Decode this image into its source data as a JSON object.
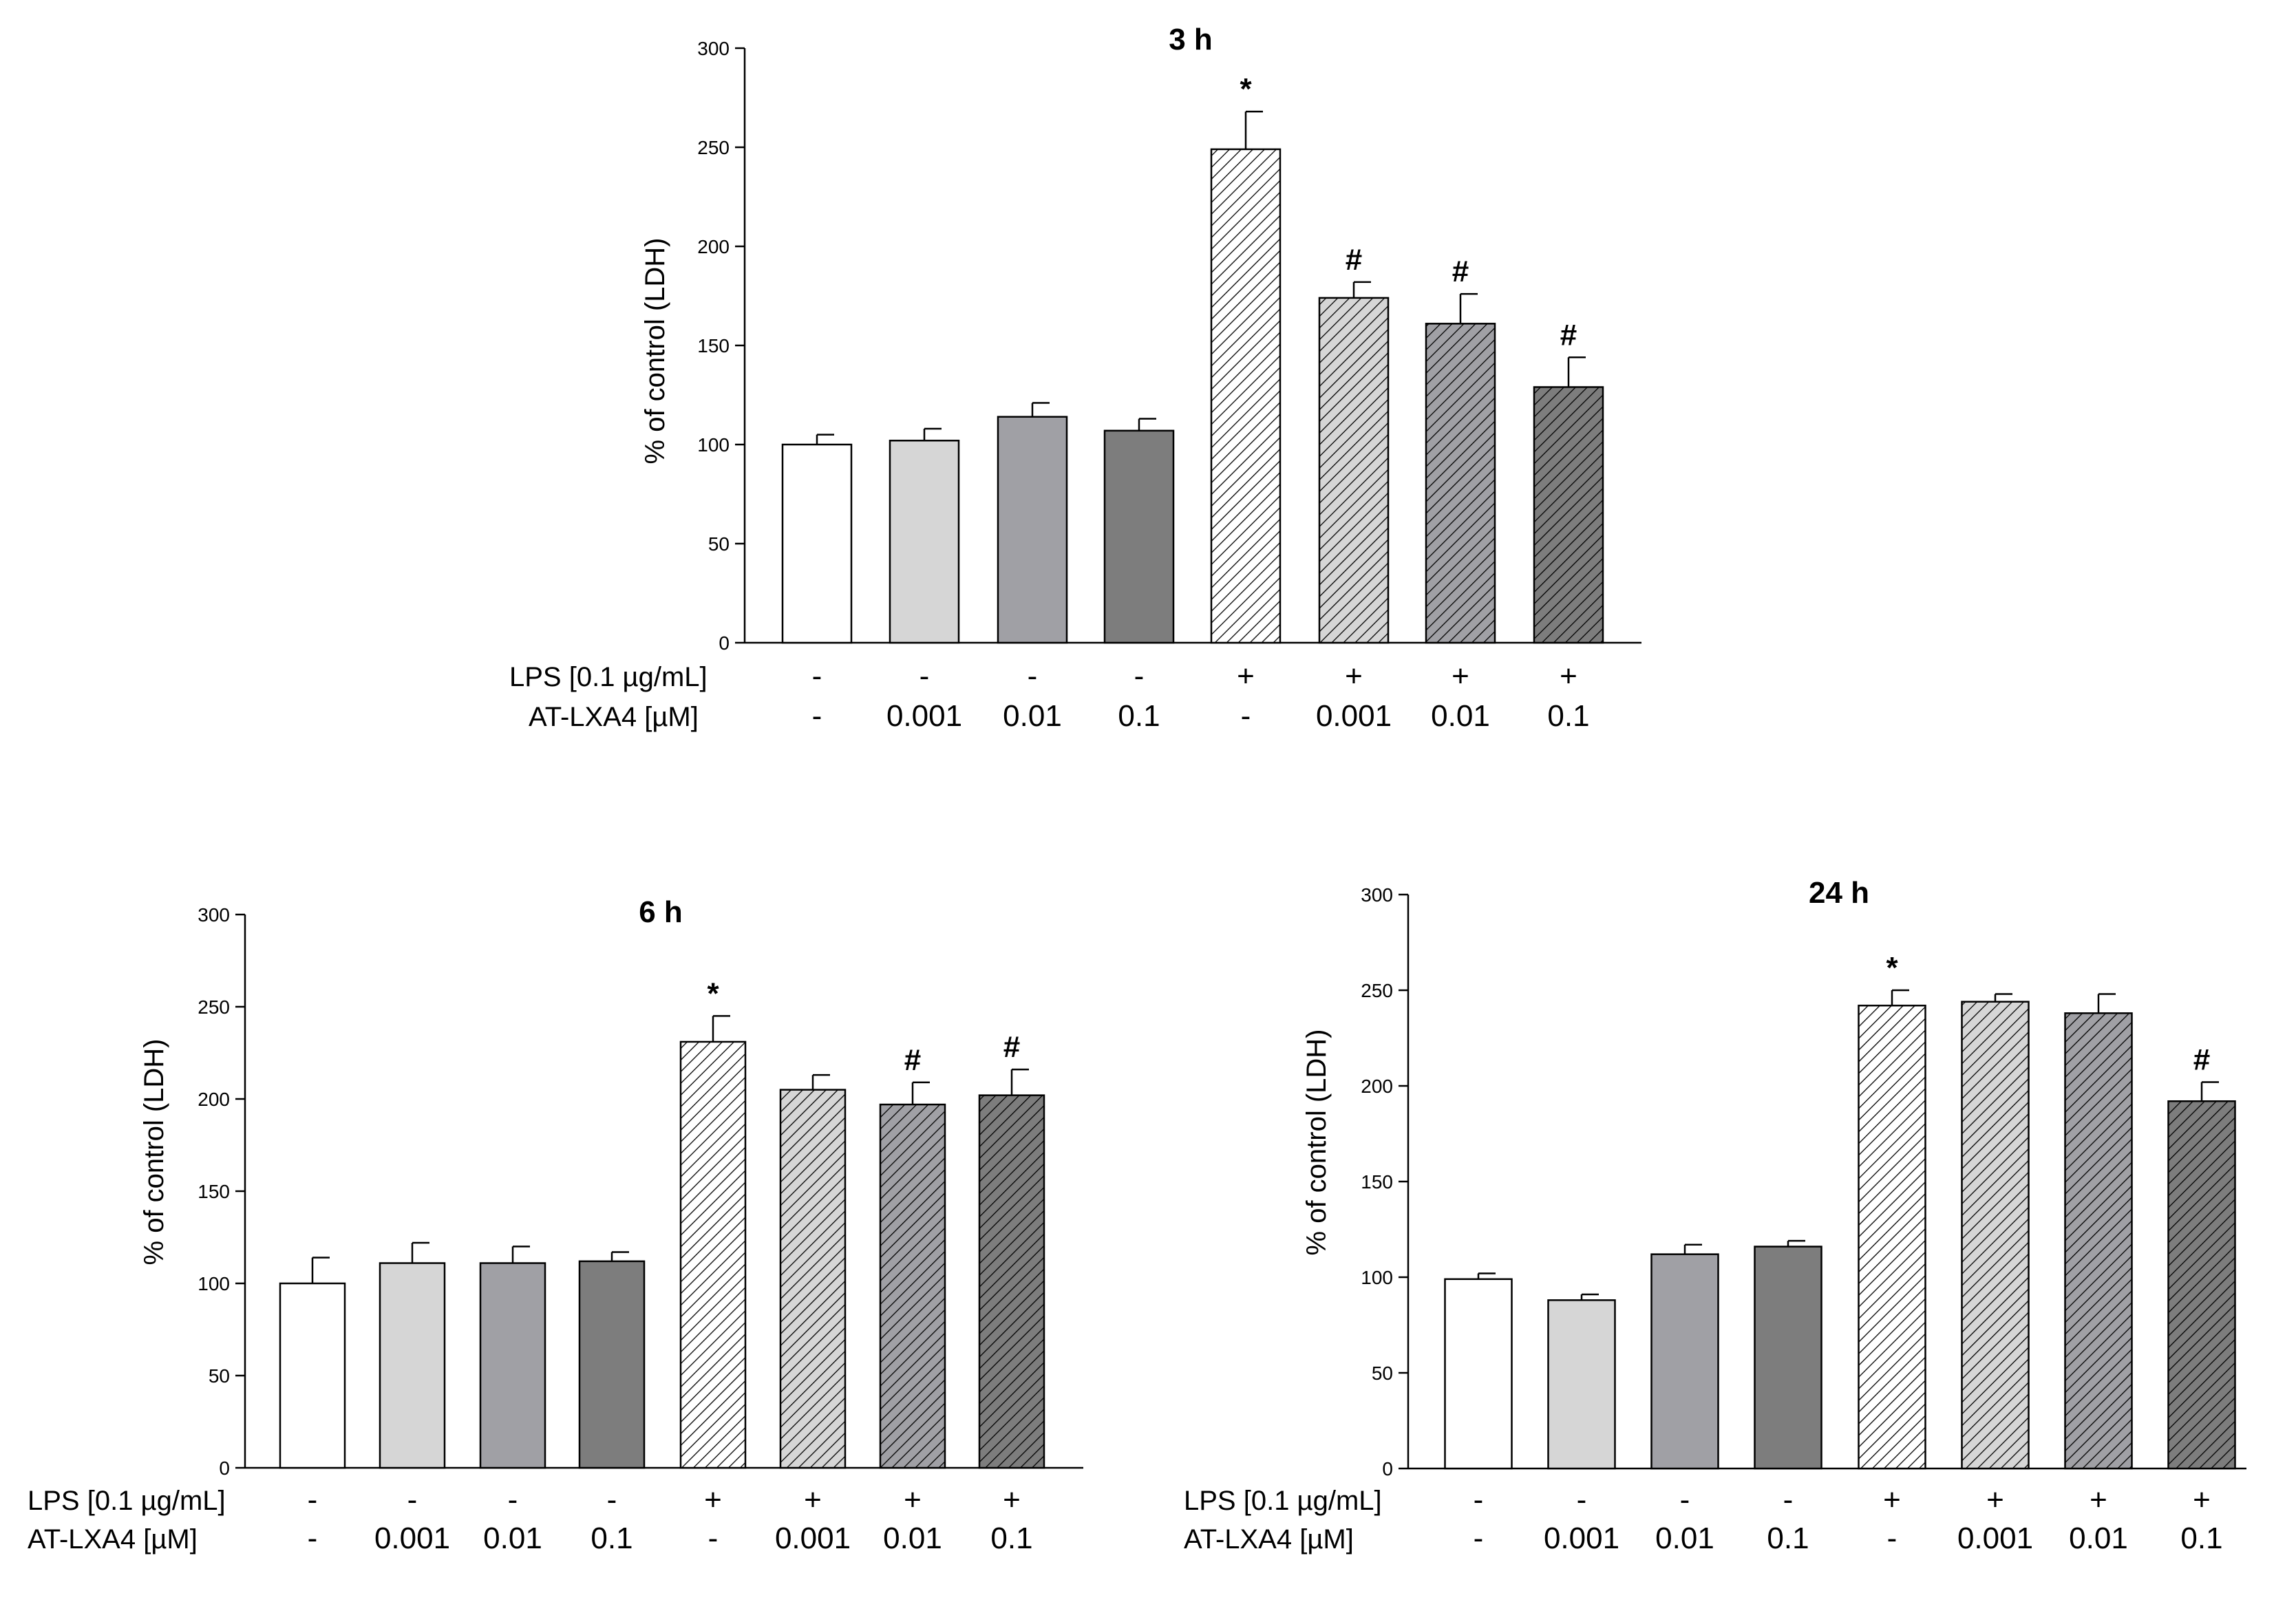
{
  "colors": {
    "fills": [
      "#ffffff",
      "#d6d6d6",
      "#a0a0a5",
      "#7d7d7d",
      "#ffffff",
      "#d6d6d6",
      "#a0a0a5",
      "#7d7d7d"
    ],
    "hatched": [
      false,
      false,
      false,
      false,
      true,
      true,
      true,
      true
    ],
    "stroke": "#000000"
  },
  "row_labels": {
    "lps": "LPS [0.1 µg/mL]",
    "atlxa4": "AT-LXA4 [µM]"
  },
  "chart_data": [
    {
      "type": "bar",
      "title": "3 h",
      "ylabel": "% of control (LDH)",
      "ylim": [
        0,
        300
      ],
      "yticks": [
        "0",
        "50",
        "100",
        "150",
        "200",
        "250",
        "300"
      ],
      "lps": [
        "-",
        "-",
        "-",
        "-",
        "+",
        "+",
        "+",
        "+"
      ],
      "atlxa4": [
        "-",
        "0.001",
        "0.01",
        "0.1",
        "-",
        "0.001",
        "0.01",
        "0.1"
      ],
      "values": [
        100,
        102,
        114,
        107,
        249,
        174,
        161,
        129
      ],
      "errors": [
        5,
        6,
        7,
        6,
        19,
        8,
        15,
        15
      ],
      "significance": [
        "",
        "",
        "",
        "",
        "*",
        "#",
        "#",
        "#"
      ]
    },
    {
      "type": "bar",
      "title": "6 h",
      "ylabel": "% of control (LDH)",
      "ylim": [
        0,
        300
      ],
      "yticks": [
        "0",
        "50",
        "100",
        "150",
        "200",
        "250",
        "300"
      ],
      "lps": [
        "-",
        "-",
        "-",
        "-",
        "+",
        "+",
        "+",
        "+"
      ],
      "atlxa4": [
        "-",
        "0.001",
        "0.01",
        "0.1",
        "-",
        "0.001",
        "0.01",
        "0.1"
      ],
      "values": [
        100,
        111,
        111,
        112,
        231,
        205,
        197,
        202
      ],
      "errors": [
        14,
        11,
        9,
        5,
        14,
        8,
        12,
        14
      ],
      "significance": [
        "",
        "",
        "",
        "",
        "*",
        "",
        "#",
        "#"
      ]
    },
    {
      "type": "bar",
      "title": "24 h",
      "ylabel": "% of control (LDH)",
      "ylim": [
        0,
        300
      ],
      "yticks": [
        "0",
        "50",
        "100",
        "150",
        "200",
        "250",
        "300"
      ],
      "lps": [
        "-",
        "-",
        "-",
        "-",
        "+",
        "+",
        "+",
        "+"
      ],
      "atlxa4": [
        "-",
        "0.001",
        "0.01",
        "0.1",
        "-",
        "0.001",
        "0.01",
        "0.1"
      ],
      "values": [
        99,
        88,
        112,
        116,
        242,
        244,
        238,
        192
      ],
      "errors": [
        3,
        3,
        5,
        3,
        8,
        4,
        10,
        10
      ],
      "significance": [
        "",
        "",
        "",
        "",
        "*",
        "",
        "",
        "#"
      ]
    }
  ]
}
